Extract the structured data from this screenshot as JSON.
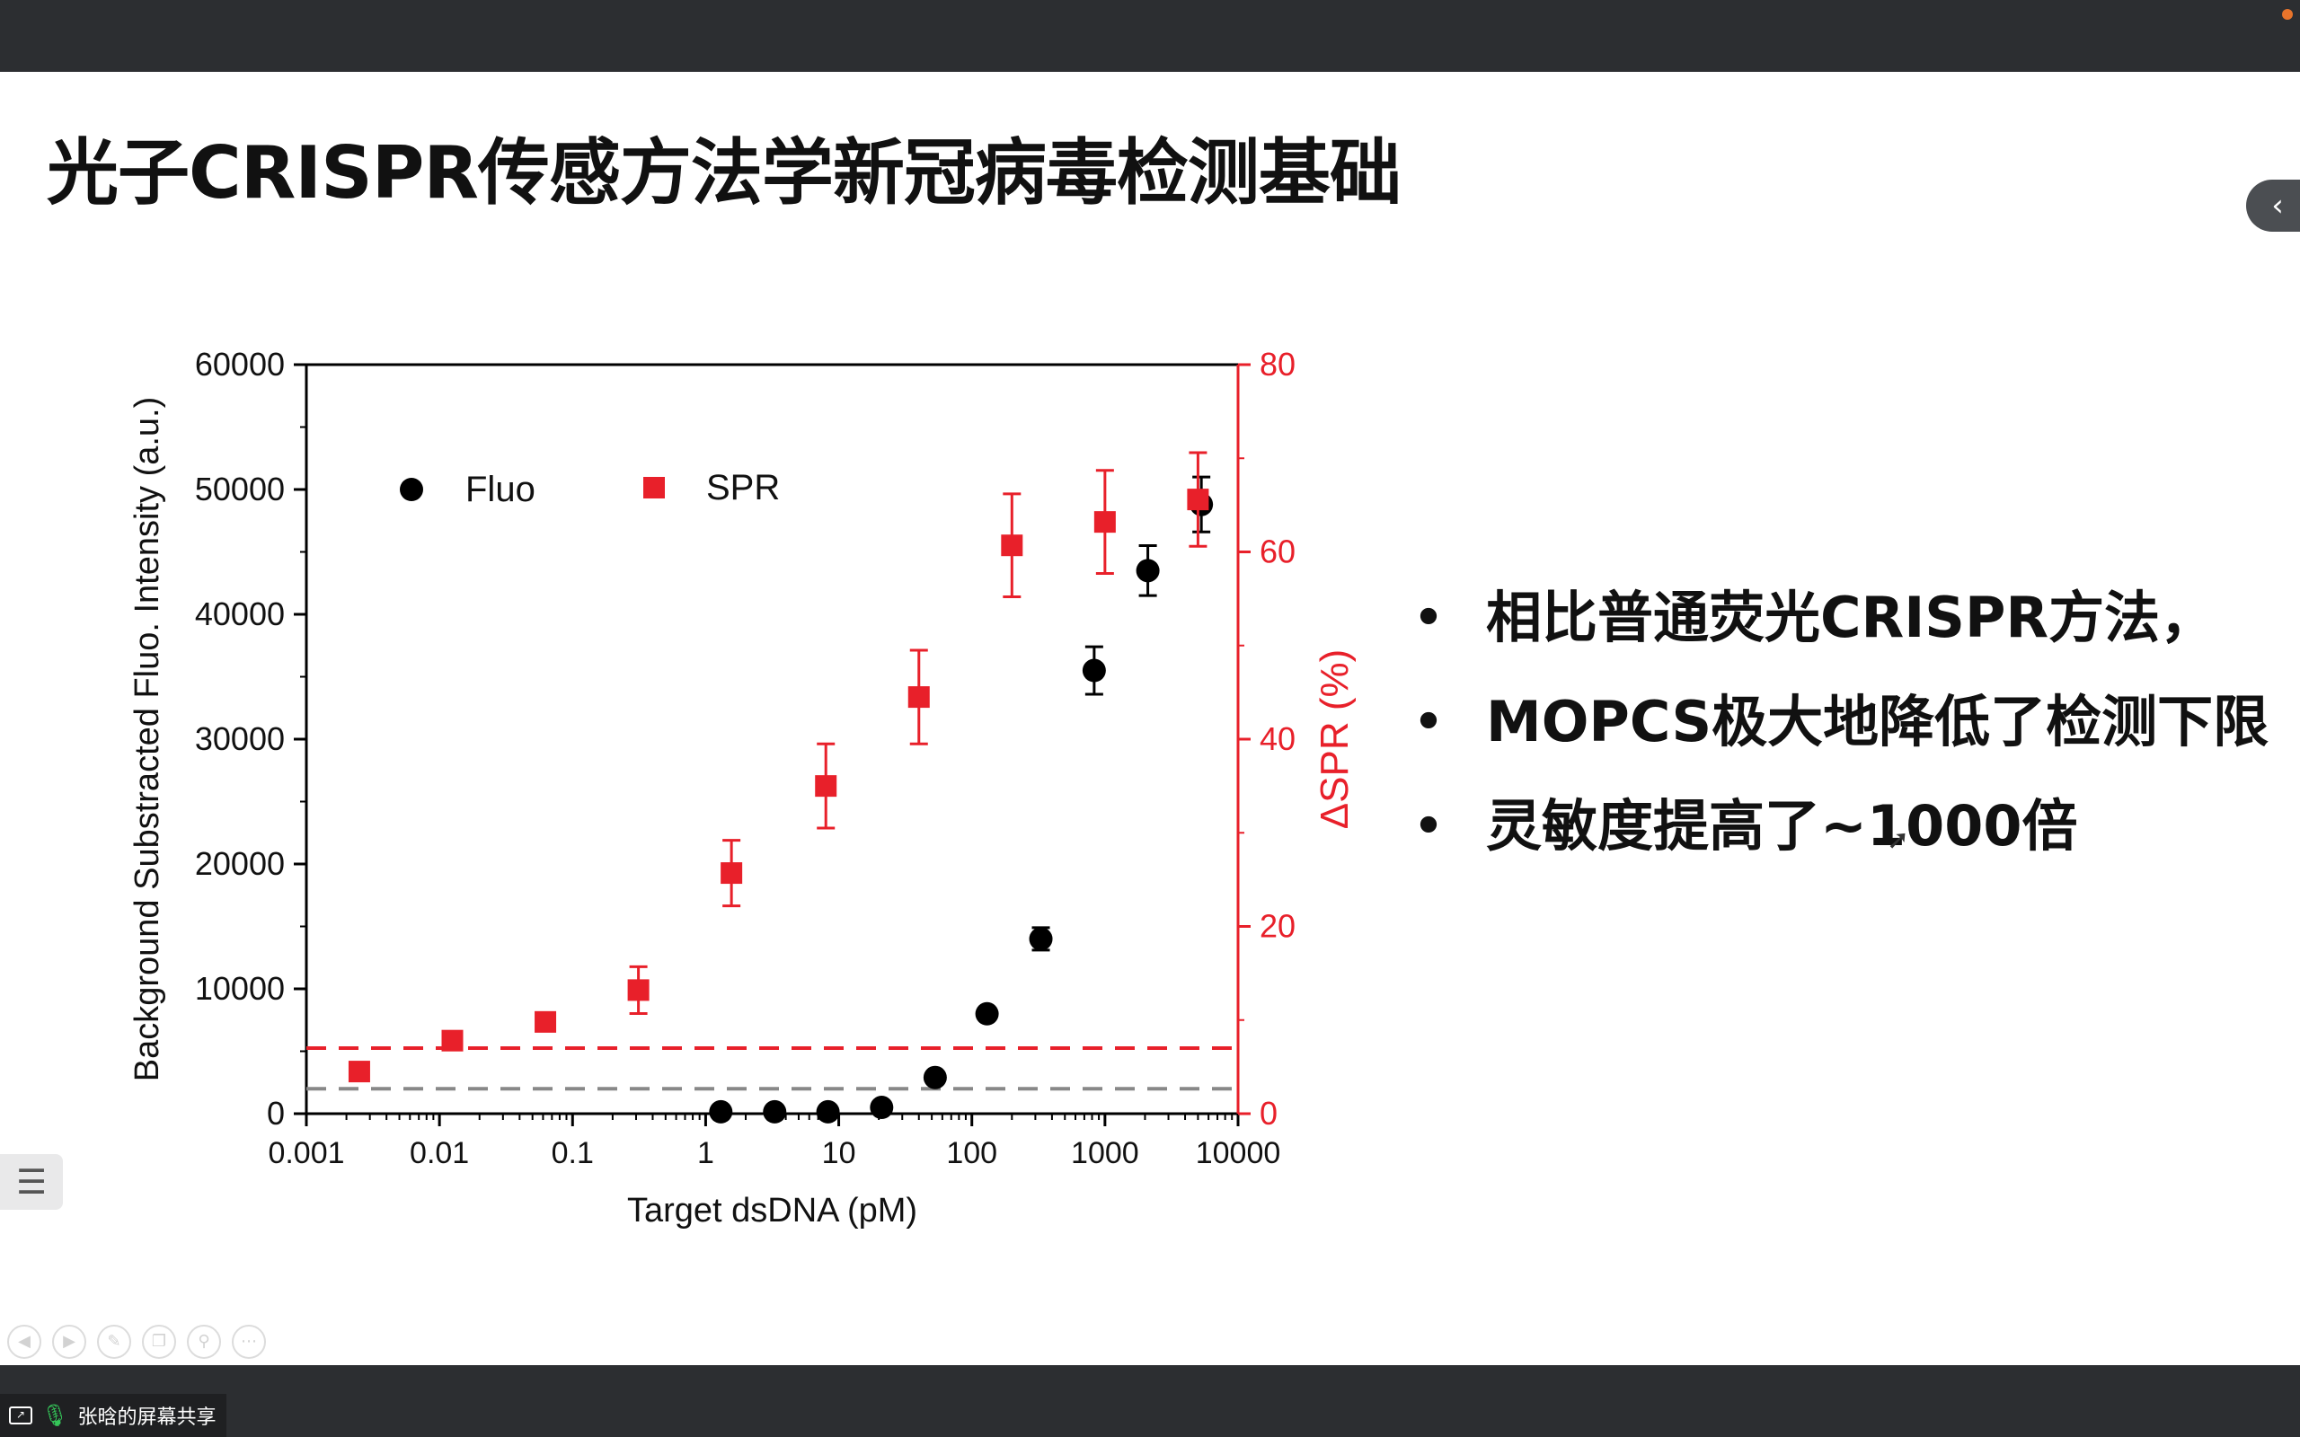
{
  "slide": {
    "title": "光子CRISPR传感方法学新冠病毒检测基础",
    "bullets": [
      "相比普通荧光CRISPR方法，",
      "MOPCS极大地降低了检测下限",
      "灵敏度提高了~1000倍"
    ],
    "bullet_char": "•"
  },
  "chart_data": {
    "type": "scatter",
    "xlabel": "Target dsDNA (pM)",
    "ylabel_left": "Background Substracted Fluo. Intensity (a.u.)",
    "ylabel_right": "ΔSPR (%)",
    "x_scale": "log",
    "xlim": [
      0.001,
      10000
    ],
    "ylim_left": [
      0,
      60000
    ],
    "ylim_right": [
      0,
      80
    ],
    "x_ticks": [
      "0.001",
      "0.01",
      "0.1",
      "1",
      "10",
      "100",
      "1000",
      "10000"
    ],
    "y_left_ticks": [
      "0",
      "10000",
      "20000",
      "30000",
      "40000",
      "50000",
      "60000"
    ],
    "y_right_ticks": [
      "0",
      "20",
      "40",
      "60",
      "80"
    ],
    "legend_placement": "top-left",
    "series": [
      {
        "name": "Fluo",
        "axis": "left",
        "marker": "circle",
        "color": "#000000",
        "points": [
          {
            "x": 1.3,
            "y": 150,
            "err": 0
          },
          {
            "x": 3.3,
            "y": 150,
            "err": 0
          },
          {
            "x": 8.3,
            "y": 150,
            "err": 0
          },
          {
            "x": 21,
            "y": 500,
            "err": 0
          },
          {
            "x": 53,
            "y": 2900,
            "err": 0
          },
          {
            "x": 130,
            "y": 8000,
            "err": 0
          },
          {
            "x": 330,
            "y": 14000,
            "err": 900
          },
          {
            "x": 830,
            "y": 35500,
            "err": 1900
          },
          {
            "x": 2100,
            "y": 43500,
            "err": 2000
          },
          {
            "x": 5300,
            "y": 48800,
            "err": 2200
          }
        ]
      },
      {
        "name": "SPR",
        "axis": "right",
        "marker": "square",
        "color": "#e8202a",
        "points": [
          {
            "x": 0.0025,
            "y": 4.5,
            "err": 0
          },
          {
            "x": 0.0125,
            "y": 7.8,
            "err": 0
          },
          {
            "x": 0.0625,
            "y": 9.8,
            "err": 0
          },
          {
            "x": 0.3125,
            "y": 13.2,
            "err": 2.5
          },
          {
            "x": 1.5625,
            "y": 25.7,
            "err": 3.5
          },
          {
            "x": 8.0,
            "y": 35.0,
            "err": 4.5
          },
          {
            "x": 40.0,
            "y": 44.5,
            "err": 5.0
          },
          {
            "x": 200.0,
            "y": 60.7,
            "err": 5.5
          },
          {
            "x": 1000.0,
            "y": 63.2,
            "err": 5.5
          },
          {
            "x": 5000.0,
            "y": 65.6,
            "err": 5.0
          }
        ]
      }
    ],
    "threshold_lines": [
      {
        "axis": "right",
        "y": 7.0,
        "color": "#e8202a",
        "style": "dashed"
      },
      {
        "axis": "left",
        "y": 2000,
        "color": "#888888",
        "style": "dashed"
      }
    ]
  },
  "overlay": {
    "sidebar_toggle_icon": "chevron-left-icon",
    "sidebar_toggle_glyph": "‹",
    "outline_icon": "outline-list-icon",
    "outline_glyph": "☰",
    "toolbar_icons": [
      "prev-icon",
      "next-icon",
      "pen-icon",
      "copy-icon",
      "zoom-icon",
      "more-icon"
    ],
    "toolbar_glyphs": [
      "◀",
      "▶",
      "✎",
      "❐",
      "⚲",
      "⋯"
    ],
    "share_label": "张晗的屏幕共享",
    "share_icon": "screen-share-icon",
    "mic_icon": "microphone-icon",
    "mic_glyph": "🎙"
  }
}
